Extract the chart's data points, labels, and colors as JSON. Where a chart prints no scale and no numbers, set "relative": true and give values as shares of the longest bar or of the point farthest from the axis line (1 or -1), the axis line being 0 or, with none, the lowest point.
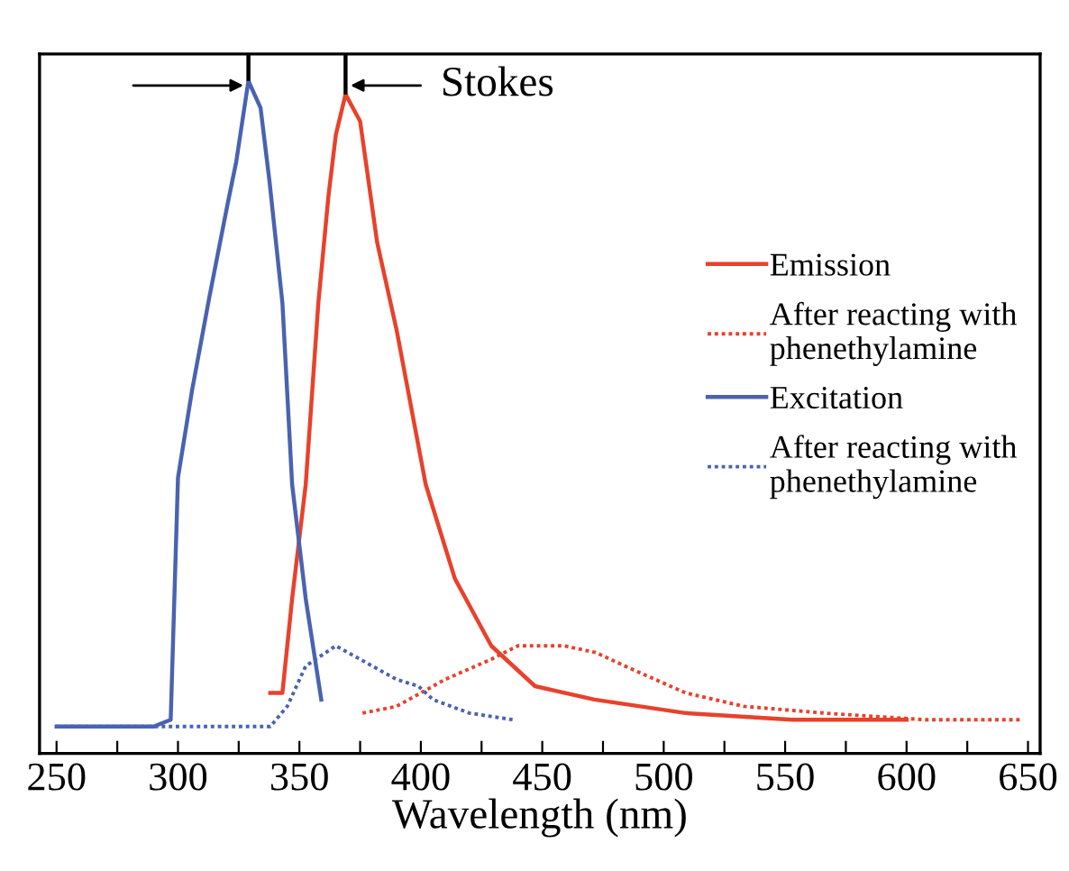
{
  "chart_data": {
    "type": "line",
    "relative": true,
    "xlabel": "Wavelength (nm)",
    "xlim": [
      243,
      655
    ],
    "xticks": [
      250,
      {
        "value": 275,
        "label": null
      },
      300,
      {
        "value": 325,
        "label": null
      },
      350,
      {
        "value": 375,
        "label": null
      },
      400,
      {
        "value": 425,
        "label": null
      },
      450,
      {
        "value": 475,
        "label": null
      },
      500,
      {
        "value": 525,
        "label": null
      },
      550,
      {
        "value": 575,
        "label": null
      },
      600,
      {
        "value": 625,
        "label": null
      },
      650
    ],
    "tick_labels": "x",
    "grid": false,
    "legend": "right",
    "marker": "none",
    "series": [
      {
        "name": "Emission",
        "color": "#e8412c",
        "line_style": "solid",
        "x": [
          338,
          343,
          347,
          352.6,
          357.8,
          362,
          365,
          369,
          375,
          382,
          390,
          402,
          414,
          429,
          447,
          471.5,
          509,
          553,
          600
        ],
        "values": [
          0.09,
          0.09,
          0.23,
          0.4,
          0.67,
          0.83,
          0.92,
          0.98,
          0.94,
          0.76,
          0.63,
          0.4,
          0.26,
          0.16,
          0.1,
          0.08,
          0.06,
          0.05,
          0.05
        ]
      },
      {
        "name": "After reacting with\nphenethylamine",
        "color": "#e8412c",
        "line_style": "dotted",
        "x": [
          376,
          390,
          410,
          429,
          440,
          459,
          472,
          484,
          509,
          533,
          566,
          608,
          648
        ],
        "values": [
          0.06,
          0.07,
          0.11,
          0.14,
          0.16,
          0.16,
          0.15,
          0.13,
          0.09,
          0.07,
          0.06,
          0.05,
          0.05
        ]
      },
      {
        "name": "Excitation",
        "color": "#4a63b0",
        "line_style": "solid",
        "x": [
          250,
          290,
          297,
          300,
          305.8,
          313,
          320.6,
          324,
          329,
          334,
          337.7,
          343,
          347,
          352.6,
          359
        ],
        "values": [
          0.04,
          0.04,
          0.05,
          0.41,
          0.54,
          0.68,
          0.82,
          0.88,
          1.0,
          0.96,
          0.85,
          0.67,
          0.4,
          0.23,
          0.08
        ]
      },
      {
        "name": "After reacting with\nphenethylamine",
        "color": "#4a63b0",
        "line_style": "dotted",
        "x": [
          250,
          338,
          345,
          352.6,
          365,
          375,
          390,
          399,
          405,
          420,
          438
        ],
        "values": [
          0.04,
          0.04,
          0.07,
          0.13,
          0.16,
          0.14,
          0.11,
          0.1,
          0.08,
          0.06,
          0.05
        ]
      }
    ],
    "annotations": [
      "Stokes"
    ]
  }
}
